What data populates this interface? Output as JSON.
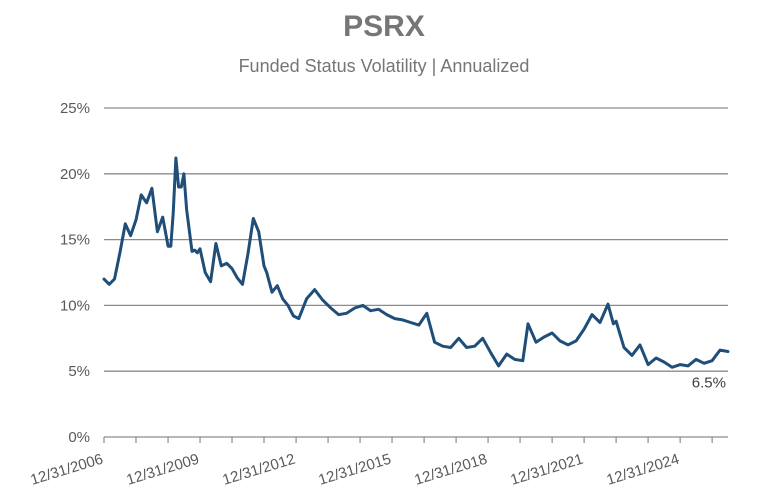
{
  "chart_data": {
    "type": "line",
    "title": "PSRX",
    "subtitle": "Funded Status Volatility | Annualized",
    "ylim": [
      0,
      25
    ],
    "y_ticks": [
      0,
      5,
      10,
      15,
      20,
      25
    ],
    "y_tick_labels": [
      "0%",
      "5%",
      "10%",
      "15%",
      "20%",
      "25%"
    ],
    "x_range": [
      "2006-12-31",
      "2026-06-30"
    ],
    "x_ticks": [
      "2006-12-31",
      "2009-12-31",
      "2012-12-31",
      "2015-12-31",
      "2018-12-31",
      "2021-12-31",
      "2024-12-31"
    ],
    "x_tick_labels": [
      "12/31/2006",
      "12/31/2009",
      "12/31/2012",
      "12/31/2015",
      "12/31/2018",
      "12/31/2021",
      "12/31/2024"
    ],
    "grid": true,
    "line_color": "#1f4e79",
    "annotation": {
      "text": "6.5%",
      "value": 6.5
    },
    "series": [
      {
        "x": [
          "2006-12-31",
          "2007-02-28",
          "2007-04-30",
          "2007-06-30",
          "2007-08-31",
          "2007-10-31",
          "2007-12-31",
          "2008-02-29",
          "2008-04-30",
          "2008-06-30",
          "2008-08-31",
          "2008-10-31",
          "2008-12-31",
          "2009-01-31",
          "2009-02-28",
          "2009-03-31",
          "2009-04-30",
          "2009-05-31",
          "2009-06-30",
          "2009-07-31",
          "2009-09-30",
          "2009-10-31",
          "2009-11-30",
          "2009-12-31",
          "2010-02-28",
          "2010-04-30",
          "2010-06-30",
          "2010-08-31",
          "2010-10-31",
          "2010-12-31",
          "2011-02-28",
          "2011-04-30",
          "2011-06-30",
          "2011-08-31",
          "2011-10-31",
          "2011-12-31",
          "2012-01-31",
          "2012-03-31",
          "2012-05-31",
          "2012-07-31",
          "2012-09-30",
          "2012-11-30",
          "2013-01-31",
          "2013-04-30",
          "2013-07-31",
          "2013-10-31",
          "2014-01-31",
          "2014-04-30",
          "2014-07-31",
          "2014-10-31",
          "2015-01-31",
          "2015-04-30",
          "2015-07-31",
          "2015-10-31",
          "2016-01-31",
          "2016-04-30",
          "2016-07-31",
          "2016-10-31",
          "2017-01-31",
          "2017-04-30",
          "2017-07-31",
          "2017-10-31",
          "2018-01-31",
          "2018-04-30",
          "2018-07-31",
          "2018-10-31",
          "2019-01-31",
          "2019-04-30",
          "2019-07-31",
          "2019-10-31",
          "2020-01-31",
          "2020-03-31",
          "2020-06-30",
          "2020-09-30",
          "2020-12-31",
          "2021-03-31",
          "2021-06-30",
          "2021-09-30",
          "2021-12-31",
          "2022-03-31",
          "2022-06-30",
          "2022-09-30",
          "2022-11-30",
          "2022-12-31",
          "2023-03-31",
          "2023-06-30",
          "2023-09-30",
          "2023-12-31",
          "2024-03-31",
          "2024-06-30",
          "2024-09-30",
          "2024-12-31",
          "2025-03-31",
          "2025-06-30",
          "2025-09-30",
          "2025-12-31",
          "2026-03-31",
          "2026-06-30"
        ],
        "values": [
          12.0,
          11.6,
          12.0,
          14.0,
          16.2,
          15.3,
          16.5,
          18.4,
          17.8,
          18.9,
          15.6,
          16.7,
          14.5,
          14.5,
          17.0,
          21.2,
          19.0,
          19.0,
          20.0,
          17.3,
          14.1,
          14.2,
          14.0,
          14.3,
          12.5,
          11.8,
          14.7,
          13.0,
          13.2,
          12.8,
          12.1,
          11.6,
          13.9,
          16.6,
          15.6,
          13.0,
          12.5,
          11.0,
          11.5,
          10.5,
          10.0,
          9.2,
          9.0,
          10.5,
          11.2,
          10.4,
          9.8,
          9.3,
          9.4,
          9.8,
          10.0,
          9.6,
          9.7,
          9.3,
          9.0,
          8.9,
          8.7,
          8.5,
          9.4,
          7.2,
          6.9,
          6.8,
          7.5,
          6.8,
          6.9,
          7.5,
          6.4,
          5.4,
          6.3,
          5.9,
          5.8,
          8.6,
          7.2,
          7.6,
          7.9,
          7.3,
          7.0,
          7.3,
          8.2,
          9.3,
          8.7,
          10.1,
          8.6,
          8.8,
          6.8,
          6.2,
          7.0,
          5.5,
          6.0,
          5.7,
          5.3,
          5.5,
          5.4,
          5.9,
          5.6,
          5.8,
          6.6,
          6.5
        ]
      }
    ]
  }
}
